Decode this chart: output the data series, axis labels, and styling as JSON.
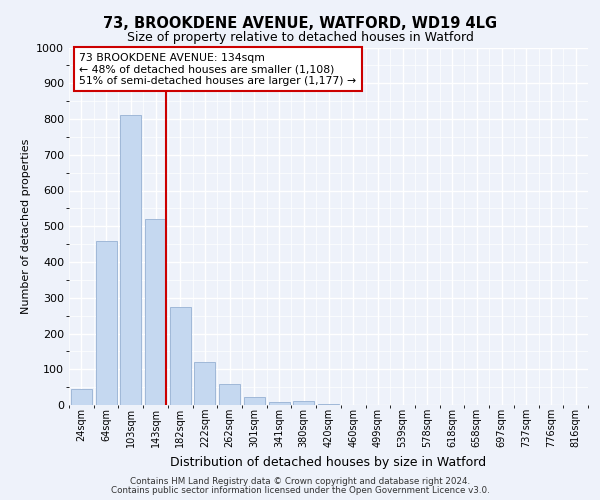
{
  "title_line1": "73, BROOKDENE AVENUE, WATFORD, WD19 4LG",
  "title_line2": "Size of property relative to detached houses in Watford",
  "xlabel": "Distribution of detached houses by size in Watford",
  "ylabel": "Number of detached properties",
  "categories": [
    "24sqm",
    "64sqm",
    "103sqm",
    "143sqm",
    "182sqm",
    "222sqm",
    "262sqm",
    "301sqm",
    "341sqm",
    "380sqm",
    "420sqm",
    "460sqm",
    "499sqm",
    "539sqm",
    "578sqm",
    "618sqm",
    "658sqm",
    "697sqm",
    "737sqm",
    "776sqm",
    "816sqm"
  ],
  "values": [
    45,
    460,
    810,
    520,
    275,
    120,
    60,
    22,
    8,
    12,
    3,
    0,
    0,
    0,
    0,
    0,
    0,
    0,
    0,
    0,
    0
  ],
  "bar_color": "#c5d8f0",
  "bar_edge_color": "#a0b8d8",
  "vline_index": 3,
  "vline_color": "#cc0000",
  "annotation_text": "73 BROOKDENE AVENUE: 134sqm\n← 48% of detached houses are smaller (1,108)\n51% of semi-detached houses are larger (1,177) →",
  "annotation_box_color": "white",
  "annotation_box_edge": "#cc0000",
  "ylim": [
    0,
    1000
  ],
  "yticks": [
    0,
    100,
    200,
    300,
    400,
    500,
    600,
    700,
    800,
    900,
    1000
  ],
  "bg_color": "#eef2fa",
  "plot_bg_color": "#eef2fa",
  "grid_color": "white",
  "footer_line1": "Contains HM Land Registry data © Crown copyright and database right 2024.",
  "footer_line2": "Contains public sector information licensed under the Open Government Licence v3.0."
}
